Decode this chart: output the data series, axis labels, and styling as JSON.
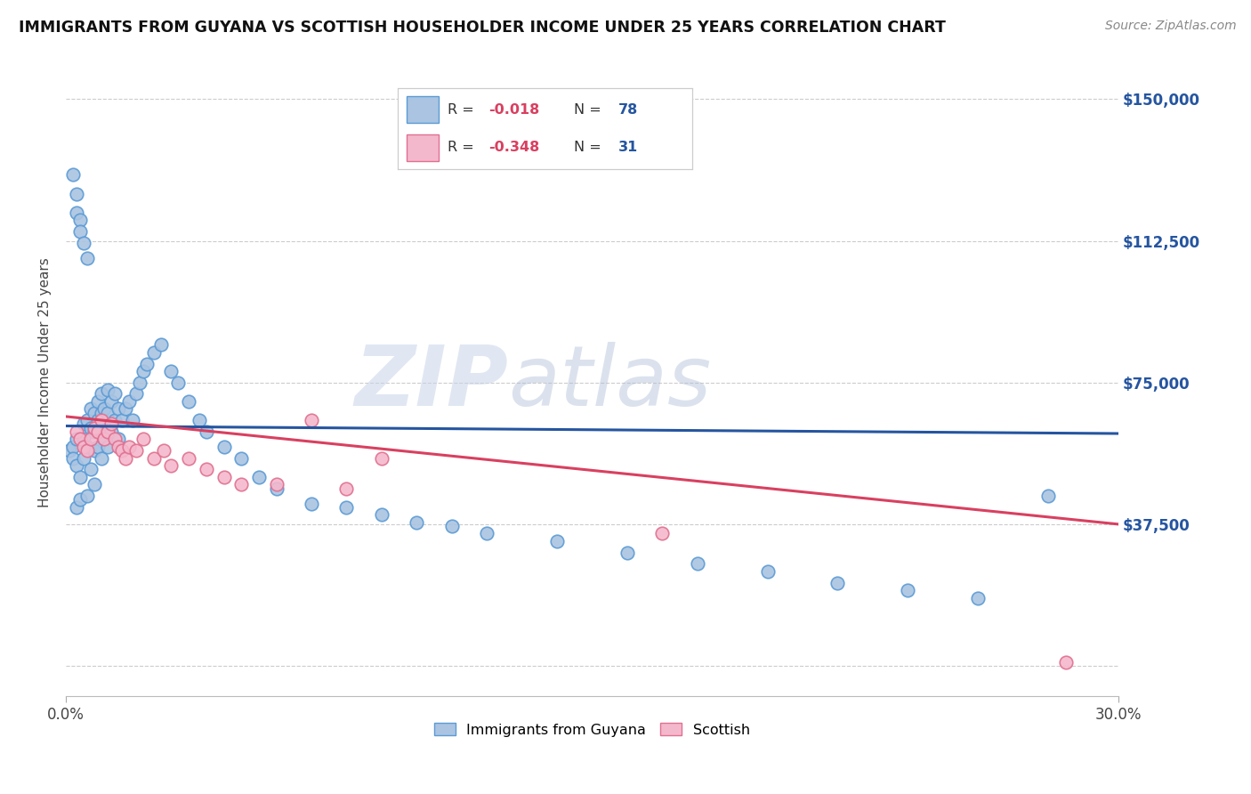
{
  "title": "IMMIGRANTS FROM GUYANA VS SCOTTISH HOUSEHOLDER INCOME UNDER 25 YEARS CORRELATION CHART",
  "source": "Source: ZipAtlas.com",
  "ylabel": "Householder Income Under 25 years",
  "xlim": [
    0.0,
    0.3
  ],
  "ylim": [
    -8000,
    158000
  ],
  "xtick_vals": [
    0.0,
    0.3
  ],
  "xtick_labels": [
    "0.0%",
    "30.0%"
  ],
  "ytick_vals": [
    0,
    37500,
    75000,
    112500,
    150000
  ],
  "ytick_labels": [
    "",
    "$37,500",
    "$75,000",
    "$112,500",
    "$150,000"
  ],
  "series1_color": "#aac4e2",
  "series1_edge_color": "#5b9bd5",
  "series2_color": "#f4b8cc",
  "series2_edge_color": "#e07090",
  "line1_color": "#2555a0",
  "line2_color": "#d94060",
  "legend1_r": "-0.018",
  "legend1_n": "78",
  "legend2_r": "-0.348",
  "legend2_n": "31",
  "watermark": "ZIPatlas",
  "blue_scatter_x": [
    0.001,
    0.002,
    0.002,
    0.003,
    0.003,
    0.003,
    0.004,
    0.004,
    0.005,
    0.005,
    0.005,
    0.006,
    0.006,
    0.006,
    0.007,
    0.007,
    0.007,
    0.008,
    0.008,
    0.008,
    0.008,
    0.009,
    0.009,
    0.009,
    0.01,
    0.01,
    0.01,
    0.011,
    0.011,
    0.012,
    0.012,
    0.012,
    0.013,
    0.013,
    0.014,
    0.014,
    0.015,
    0.015,
    0.016,
    0.017,
    0.018,
    0.019,
    0.02,
    0.021,
    0.022,
    0.023,
    0.025,
    0.027,
    0.03,
    0.032,
    0.035,
    0.038,
    0.04,
    0.045,
    0.05,
    0.055,
    0.06,
    0.07,
    0.08,
    0.09,
    0.1,
    0.11,
    0.12,
    0.14,
    0.16,
    0.18,
    0.2,
    0.22,
    0.24,
    0.26,
    0.28,
    0.002,
    0.003,
    0.003,
    0.004,
    0.004,
    0.005,
    0.006
  ],
  "blue_scatter_y": [
    57000,
    58000,
    55000,
    60000,
    53000,
    42000,
    50000,
    44000,
    64000,
    60000,
    55000,
    65000,
    58000,
    45000,
    68000,
    63000,
    52000,
    67000,
    62000,
    57000,
    48000,
    70000,
    65000,
    58000,
    72000,
    67000,
    55000,
    68000,
    60000,
    73000,
    67000,
    58000,
    70000,
    62000,
    72000,
    65000,
    68000,
    60000,
    65000,
    68000,
    70000,
    65000,
    72000,
    75000,
    78000,
    80000,
    83000,
    85000,
    78000,
    75000,
    70000,
    65000,
    62000,
    58000,
    55000,
    50000,
    47000,
    43000,
    42000,
    40000,
    38000,
    37000,
    35000,
    33000,
    30000,
    27000,
    25000,
    22000,
    20000,
    18000,
    45000,
    130000,
    125000,
    120000,
    118000,
    115000,
    112000,
    108000
  ],
  "pink_scatter_x": [
    0.003,
    0.004,
    0.005,
    0.006,
    0.007,
    0.008,
    0.009,
    0.01,
    0.011,
    0.012,
    0.013,
    0.014,
    0.015,
    0.016,
    0.017,
    0.018,
    0.02,
    0.022,
    0.025,
    0.028,
    0.03,
    0.035,
    0.04,
    0.045,
    0.05,
    0.06,
    0.07,
    0.08,
    0.09,
    0.17,
    0.285
  ],
  "pink_scatter_y": [
    62000,
    60000,
    58000,
    57000,
    60000,
    63000,
    62000,
    65000,
    60000,
    62000,
    64000,
    60000,
    58000,
    57000,
    55000,
    58000,
    57000,
    60000,
    55000,
    57000,
    53000,
    55000,
    52000,
    50000,
    48000,
    48000,
    65000,
    47000,
    55000,
    35000,
    1000
  ],
  "trendline1_x": [
    0.0,
    0.3
  ],
  "trendline1_y": [
    63500,
    61500
  ],
  "trendline2_x": [
    0.0,
    0.3
  ],
  "trendline2_y": [
    66000,
    37500
  ]
}
